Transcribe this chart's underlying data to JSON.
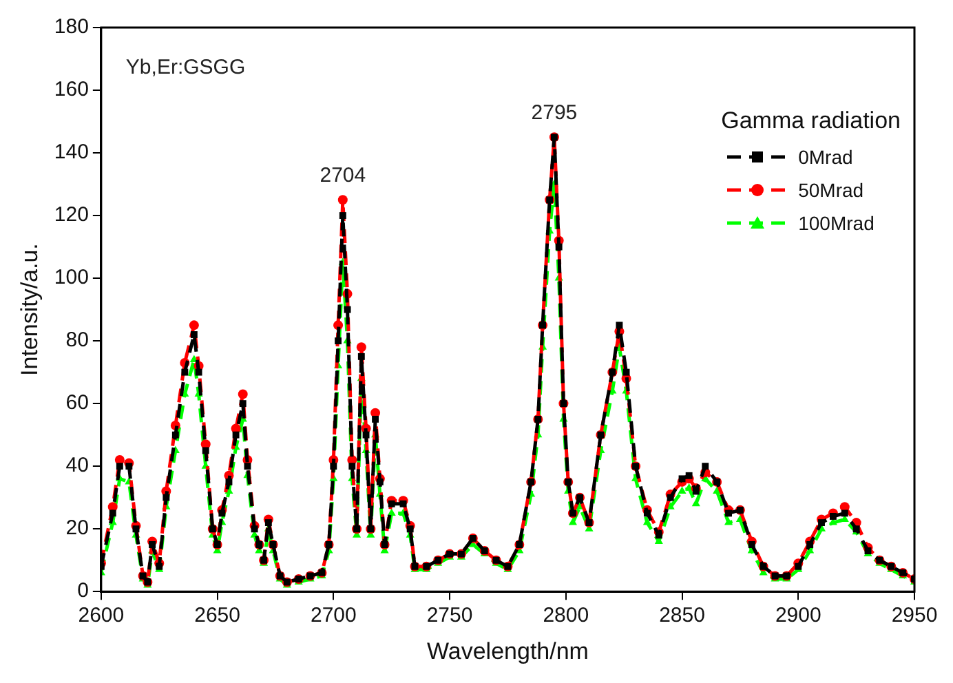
{
  "chart_data": {
    "type": "line",
    "xlabel": "Wavelength/nm",
    "ylabel": "Intensity/a.u.",
    "legend_title": "Gamma radiation",
    "legend": "top right",
    "grid": false,
    "line_style": "dashed",
    "x": [
      2600,
      2605,
      2608,
      2612,
      2615,
      2618,
      2620,
      2622,
      2625,
      2628,
      2632,
      2636,
      2640,
      2642,
      2645,
      2648,
      2650,
      2652,
      2655,
      2658,
      2661,
      2663,
      2666,
      2668,
      2670,
      2672,
      2674,
      2677,
      2680,
      2685,
      2690,
      2695,
      2698,
      2700,
      2702,
      2704,
      2706,
      2708,
      2710,
      2712,
      2714,
      2716,
      2718,
      2720,
      2722,
      2725,
      2730,
      2733,
      2735,
      2740,
      2745,
      2750,
      2755,
      2760,
      2765,
      2770,
      2775,
      2780,
      2785,
      2788,
      2790,
      2793,
      2795,
      2797,
      2799,
      2801,
      2803,
      2806,
      2810,
      2815,
      2820,
      2823,
      2826,
      2830,
      2835,
      2840,
      2845,
      2850,
      2853,
      2856,
      2860,
      2865,
      2870,
      2875,
      2880,
      2885,
      2890,
      2895,
      2900,
      2905,
      2910,
      2915,
      2920,
      2925,
      2930,
      2935,
      2940,
      2945,
      2950
    ],
    "xlim": [
      2600,
      2950
    ],
    "xticks": [
      2600,
      2650,
      2700,
      2750,
      2800,
      2850,
      2900,
      2950
    ],
    "ylim": [
      0,
      180
    ],
    "yticks": [
      0,
      20,
      40,
      60,
      80,
      100,
      120,
      140,
      160,
      180
    ],
    "series": [
      {
        "name": "0Mrad",
        "color": "#000000",
        "marker": "square",
        "values": [
          8,
          25,
          40,
          40,
          20,
          5,
          3,
          15,
          8,
          30,
          50,
          70,
          82,
          70,
          45,
          20,
          15,
          25,
          35,
          50,
          60,
          40,
          20,
          15,
          10,
          22,
          15,
          5,
          3,
          4,
          5,
          6,
          15,
          40,
          80,
          120,
          90,
          40,
          20,
          75,
          50,
          20,
          55,
          35,
          15,
          28,
          28,
          20,
          8,
          8,
          10,
          12,
          12,
          17,
          13,
          10,
          8,
          15,
          35,
          55,
          85,
          125,
          145,
          110,
          60,
          35,
          25,
          30,
          22,
          50,
          70,
          85,
          70,
          40,
          25,
          18,
          30,
          36,
          37,
          32,
          40,
          35,
          25,
          26,
          15,
          8,
          5,
          5,
          8,
          15,
          22,
          24,
          25,
          20,
          13,
          10,
          8,
          6,
          4
        ]
      },
      {
        "name": "50Mrad",
        "color": "#ff0000",
        "marker": "circle",
        "values": [
          9,
          27,
          42,
          41,
          21,
          5,
          3,
          16,
          9,
          32,
          53,
          73,
          85,
          72,
          47,
          20,
          15,
          26,
          37,
          52,
          63,
          42,
          21,
          15,
          10,
          23,
          15,
          5,
          3,
          4,
          5,
          6,
          15,
          42,
          85,
          125,
          95,
          42,
          20,
          78,
          52,
          20,
          57,
          36,
          15,
          29,
          29,
          21,
          8,
          8,
          10,
          12,
          12,
          17,
          13,
          10,
          8,
          15,
          35,
          55,
          85,
          125,
          145,
          112,
          60,
          35,
          25,
          30,
          22,
          50,
          70,
          83,
          68,
          40,
          26,
          19,
          31,
          35,
          36,
          33,
          38,
          35,
          26,
          26,
          16,
          8,
          5,
          5,
          9,
          16,
          23,
          25,
          27,
          22,
          14,
          10,
          8,
          6,
          4
        ]
      },
      {
        "name": "100Mrad",
        "color": "#00ff00",
        "marker": "triangle",
        "values": [
          6,
          22,
          36,
          35,
          18,
          4,
          2,
          13,
          7,
          27,
          45,
          63,
          74,
          63,
          40,
          18,
          13,
          22,
          32,
          46,
          55,
          37,
          18,
          13,
          9,
          20,
          13,
          4,
          2,
          3,
          4,
          5,
          13,
          36,
          72,
          105,
          80,
          36,
          18,
          68,
          45,
          18,
          50,
          31,
          13,
          25,
          25,
          18,
          7,
          7,
          9,
          11,
          11,
          15,
          12,
          9,
          7,
          13,
          31,
          50,
          78,
          115,
          130,
          100,
          55,
          32,
          22,
          27,
          20,
          45,
          64,
          78,
          64,
          36,
          22,
          16,
          27,
          32,
          33,
          28,
          36,
          32,
          22,
          23,
          13,
          6,
          4,
          4,
          7,
          13,
          20,
          22,
          23,
          19,
          12,
          9,
          7,
          5,
          3
        ]
      }
    ],
    "annotations": [
      "Yb,Er:GSGG",
      {
        "text": "2704",
        "x": 2704,
        "y": 125
      },
      {
        "text": "2795",
        "x": 2795,
        "y": 145
      }
    ]
  }
}
